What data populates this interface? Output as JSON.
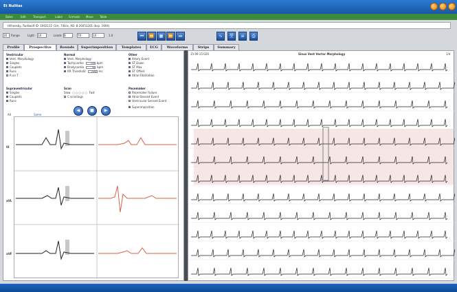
{
  "window": {
    "title": "Et Nulitas"
  },
  "menu": [
    "Datei",
    "Edit",
    "Transport",
    "Label",
    "Formats",
    "Move",
    "Table"
  ],
  "patient": {
    "info": "Hilhoesby, Rudiwolf  ID: 1902122  (1m, 74kils, AD: 8-26051201  (bsp. 1904)"
  },
  "controls": {
    "speed_label": "Range",
    "speed_value": "16",
    "gain_label": "Light",
    "gain_value": "14",
    "lead_label": "Leads",
    "lead_value": "B",
    "ch1_value": "70",
    "ch2_value": "14",
    "extra": "1.0"
  },
  "tabs": [
    "Profile",
    "Prospective",
    "Rounds",
    "Superimposition",
    "Templates",
    "ECG",
    "Waveforms",
    "Strips",
    "Summary"
  ],
  "left": {
    "ventricular": {
      "title": "Ventricular",
      "items": [
        "Vent. Morphology",
        "Singles",
        "Couplets",
        "Runs",
        "R on T"
      ]
    },
    "normal": {
      "title": "Normal",
      "items": [
        "Vent. Morphology",
        "Tachycardia",
        "Bradycardia",
        "RR Threshold"
      ],
      "values": [
        "120",
        "50",
        "2000"
      ],
      "units": [
        "bpm",
        "bpm",
        "ms"
      ]
    },
    "other": {
      "title": "Other",
      "items": [
        "Artery Event",
        "ST Down",
        "ST Max",
        "ST Offset",
        "Atrial Fibrillation"
      ]
    },
    "supra": {
      "title": "Supraventricular",
      "items": [
        "Singles",
        "Couplets",
        "Runs"
      ]
    },
    "scan": {
      "title": "Scan",
      "slow": "Slow",
      "fast": "Fast",
      "autoscan": "C scrollings"
    },
    "pacemaker": {
      "title": "Pacemaker",
      "items": [
        "Pacemaker Failure",
        "Atrial Sensed Event",
        "Ventricular Sensed Event"
      ]
    },
    "superimp": "Superimposition",
    "grid_header": {
      "col1": "All",
      "col2": "Same"
    },
    "lead_labels": [
      "III",
      "aVL",
      "aVF"
    ]
  },
  "right": {
    "time_label": "15:09 15:020",
    "strip_title": "Sinus Vent Vector Morphology",
    "scale_label": "1/4"
  },
  "colors": {
    "accent_blue": "#1d64c0",
    "menu_green": "#3d8a3d",
    "ecg_black": "#222222",
    "ecg_red": "#d8604a",
    "highlight": "#f6e6e6"
  }
}
